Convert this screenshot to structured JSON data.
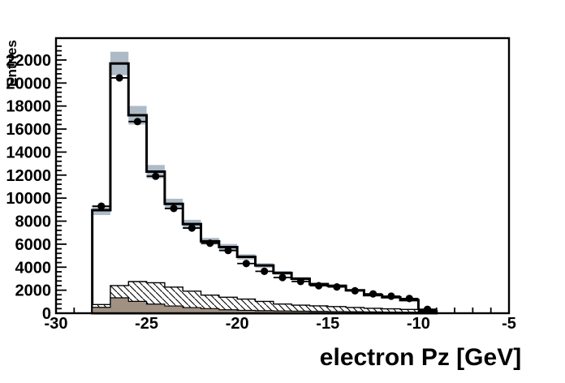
{
  "chart_data": {
    "type": "histogram",
    "title": "",
    "xlabel": "electron Pz [GeV]",
    "ylabel": "Entries",
    "xlim": [
      -30,
      -5
    ],
    "ylim": [
      0,
      23900
    ],
    "grid": false,
    "legend": null,
    "x_major_ticks": [
      -30,
      -25,
      -20,
      -15,
      -10,
      -5
    ],
    "x_minor_tick_step": 1,
    "y_major_ticks": [
      0,
      2000,
      4000,
      6000,
      8000,
      10000,
      12000,
      14000,
      16000,
      18000,
      20000,
      22000
    ],
    "y_minor_tick_step": 400,
    "bin_edges": [
      -28,
      -27,
      -26,
      -25,
      -24,
      -23,
      -22,
      -21,
      -20,
      -19,
      -18,
      -17,
      -16,
      -15,
      -14,
      -13,
      -12,
      -11,
      -10,
      -9
    ],
    "series": [
      {
        "name": "total_mc_prediction",
        "style": "step_outline_white_fill",
        "values": [
          8950,
          21700,
          17200,
          12300,
          9500,
          7750,
          6250,
          5750,
          4900,
          4150,
          3500,
          3000,
          2530,
          2380,
          1990,
          1570,
          1380,
          1140,
          180
        ]
      },
      {
        "name": "mc_uncertainty_band",
        "style": "band_around_total_mc",
        "fraction": 0.047
      },
      {
        "name": "hatched_background",
        "style": "step_hatched_fill",
        "values": [
          750,
          2400,
          2750,
          2650,
          2270,
          1920,
          1570,
          1390,
          1230,
          1030,
          800,
          700,
          640,
          580,
          500,
          430,
          380,
          330,
          60
        ]
      },
      {
        "name": "solid_background",
        "style": "step_solid_fill",
        "values": [
          510,
          1340,
          1030,
          795,
          630,
          490,
          400,
          300,
          250,
          220,
          200,
          180,
          160,
          145,
          130,
          115,
          100,
          90,
          20
        ]
      },
      {
        "name": "data_points",
        "style": "filled_circle_markers_with_xerr",
        "values": [
          9300,
          20450,
          16650,
          11900,
          9100,
          7400,
          6080,
          5450,
          4320,
          3640,
          3100,
          2760,
          2390,
          2280,
          1950,
          1680,
          1480,
          1280,
          340
        ]
      }
    ],
    "colors": {
      "uncertainty_band": "#aebbc7",
      "solid_background_fill": "#a09183",
      "histogram_outline": "#000000",
      "marker": "#000000",
      "frame": "#000000",
      "plot_background": "#ffffff"
    }
  }
}
